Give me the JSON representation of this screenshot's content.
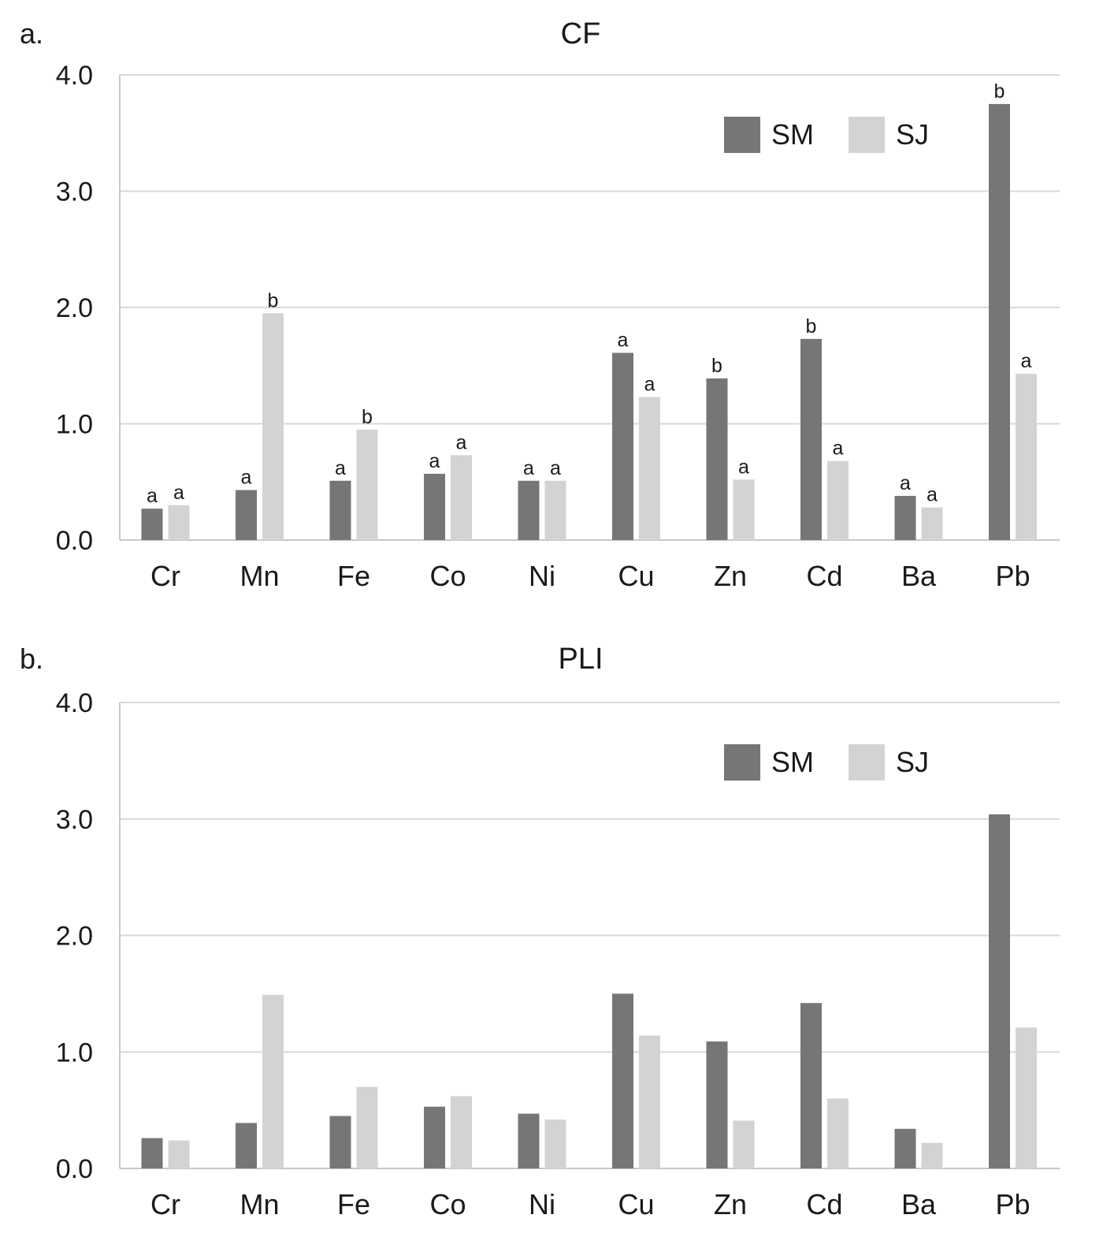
{
  "chart_data": [
    {
      "type": "bar",
      "panel_label": "a.",
      "title": "CF",
      "categories": [
        "Cr",
        "Mn",
        "Fe",
        "Co",
        "Ni",
        "Cu",
        "Zn",
        "Cd",
        "Ba",
        "Pb"
      ],
      "ylim": [
        0,
        4
      ],
      "yticks": [
        "0.0",
        "1.0",
        "2.0",
        "3.0",
        "4.0"
      ],
      "grid": true,
      "legend_position": "top-right",
      "series": [
        {
          "name": "SM",
          "color": "#767676",
          "values": [
            0.27,
            0.43,
            0.51,
            0.57,
            0.51,
            1.61,
            1.39,
            1.73,
            0.38,
            3.75
          ],
          "labels": [
            "a",
            "a",
            "a",
            "a",
            "a",
            "a",
            "b",
            "b",
            "a",
            "b"
          ]
        },
        {
          "name": "SJ",
          "color": "#d3d3d3",
          "values": [
            0.3,
            1.95,
            0.95,
            0.73,
            0.51,
            1.23,
            0.52,
            0.68,
            0.28,
            1.43
          ],
          "labels": [
            "a",
            "b",
            "b",
            "a",
            "a",
            "a",
            "a",
            "a",
            "a",
            "a"
          ]
        }
      ]
    },
    {
      "type": "bar",
      "panel_label": "b.",
      "title": "PLI",
      "categories": [
        "Cr",
        "Mn",
        "Fe",
        "Co",
        "Ni",
        "Cu",
        "Zn",
        "Cd",
        "Ba",
        "Pb"
      ],
      "ylim": [
        0,
        4
      ],
      "yticks": [
        "0.0",
        "1.0",
        "2.0",
        "3.0",
        "4.0"
      ],
      "grid": true,
      "legend_position": "top-right",
      "series": [
        {
          "name": "SM",
          "color": "#767676",
          "values": [
            0.26,
            0.39,
            0.45,
            0.53,
            0.47,
            1.5,
            1.09,
            1.42,
            0.34,
            3.04
          ]
        },
        {
          "name": "SJ",
          "color": "#d3d3d3",
          "values": [
            0.24,
            1.49,
            0.7,
            0.62,
            0.42,
            1.14,
            0.41,
            0.6,
            0.22,
            1.21
          ]
        }
      ]
    }
  ]
}
